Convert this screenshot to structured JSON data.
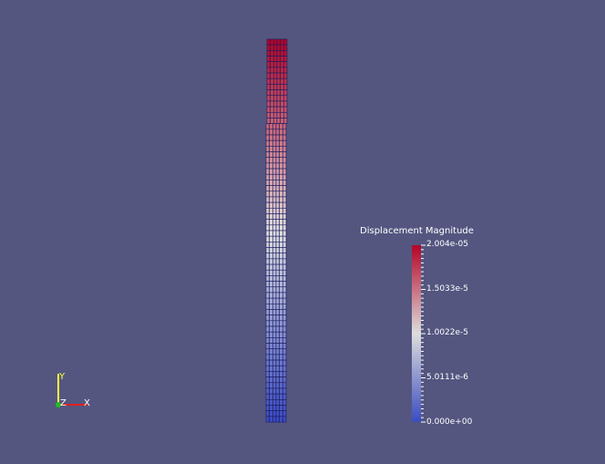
{
  "scene": {
    "background": "#545680"
  },
  "colorbar": {
    "title": "Displacement Magnitude",
    "labels": [
      "2.004e-05",
      "1.5033e-5",
      "1.0022e-5",
      "5.0111e-6",
      "0.000e+00"
    ],
    "range": [
      0,
      2.004e-05
    ],
    "colormap": [
      "#3b4cc0",
      "#dddddd",
      "#b40426"
    ]
  },
  "orientation_axes": {
    "x": "X",
    "y": "Y",
    "z": "Z",
    "x_color": "#e02020",
    "y_color": "#ffff40",
    "z_color": "#20c020"
  },
  "mesh": {
    "columns": 6,
    "rows": 68,
    "line_color": "#1a1a60"
  }
}
